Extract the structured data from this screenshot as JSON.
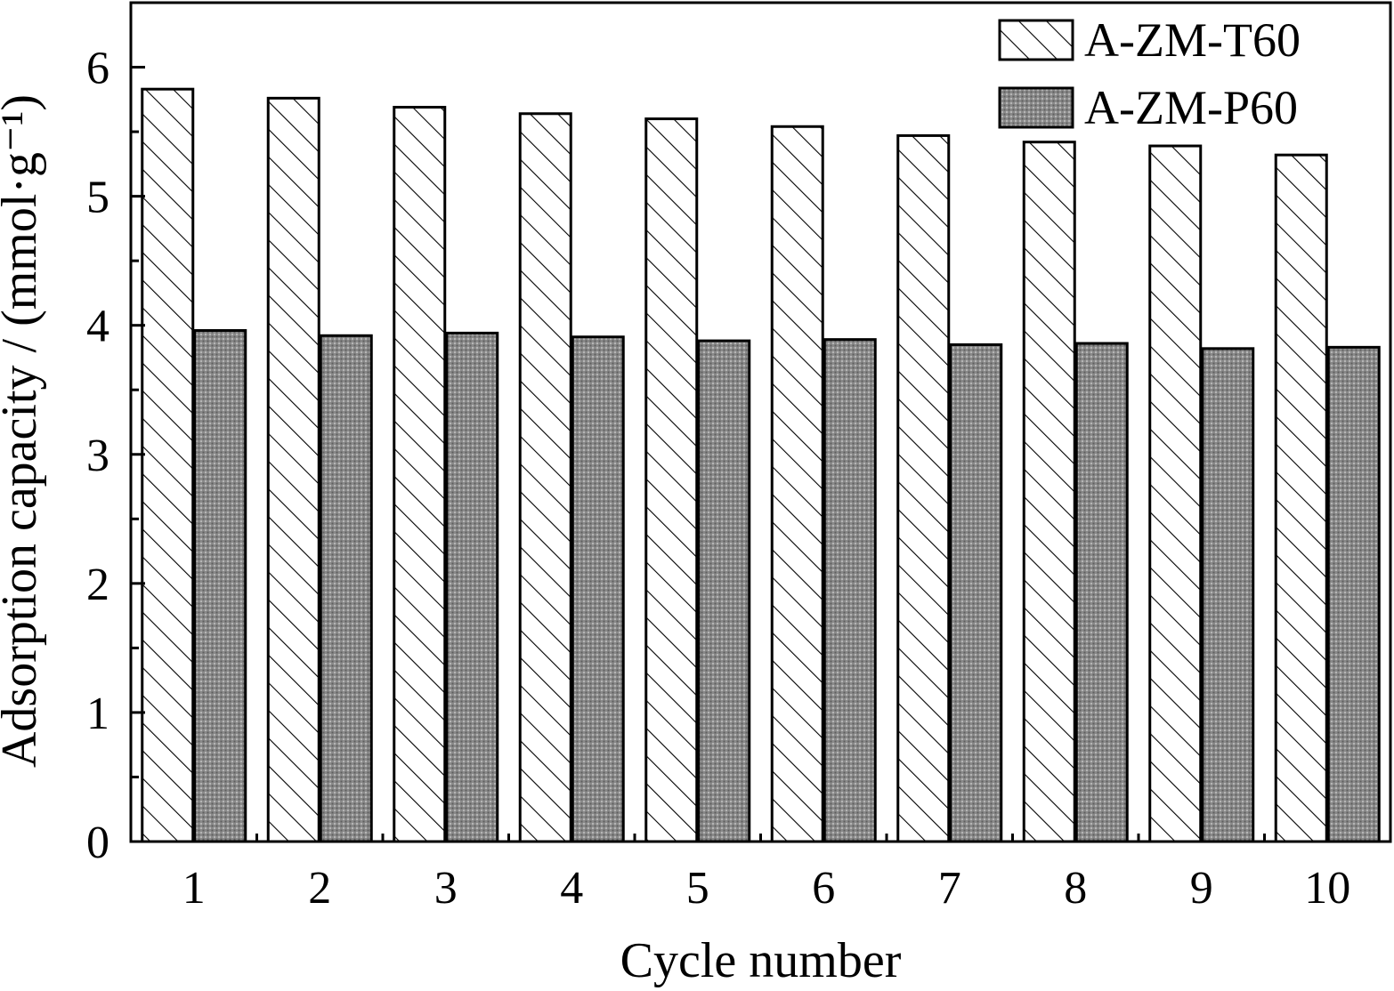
{
  "chart_data": {
    "type": "bar",
    "categories": [
      "1",
      "2",
      "3",
      "4",
      "5",
      "6",
      "7",
      "8",
      "9",
      "10"
    ],
    "series": [
      {
        "name": "A-ZM-T60",
        "pattern": "hatch",
        "values": [
          5.83,
          5.76,
          5.69,
          5.64,
          5.6,
          5.54,
          5.47,
          5.42,
          5.39,
          5.32
        ]
      },
      {
        "name": "A-ZM-P60",
        "pattern": "stipple",
        "color": "#8a8a8a",
        "values": [
          3.96,
          3.92,
          3.94,
          3.91,
          3.88,
          3.89,
          3.85,
          3.86,
          3.82,
          3.83
        ]
      }
    ],
    "xlabel": "Cycle number",
    "ylabel": "Adsorption capacity / (mmol·g⁻¹)",
    "yticks": [
      "0",
      "1",
      "2",
      "3",
      "4",
      "5",
      "6"
    ],
    "ylim": [
      0,
      6.5
    ],
    "grid": false,
    "legend": "top-right"
  }
}
